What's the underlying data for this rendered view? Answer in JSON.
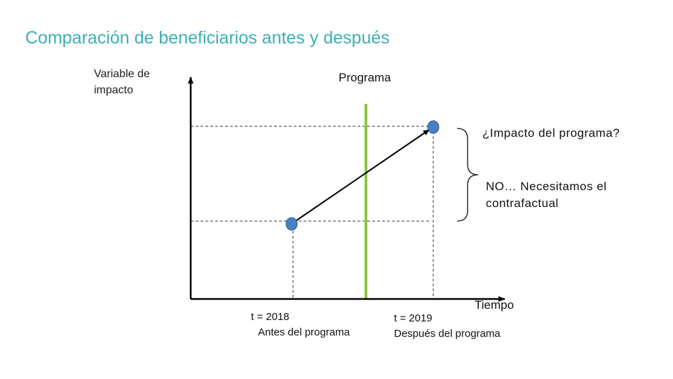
{
  "title": "Comparación de beneficiarios antes y después",
  "y_axis_label": "Variable de impacto",
  "program_label": "Programa",
  "impact_question": "¿Impacto del programa?",
  "counterfactual_note": "NO… Necesitamos el contrafactual",
  "x_axis_label": "Tiempo",
  "before": {
    "time": "t = 2018",
    "label": "Antes del programa"
  },
  "after": {
    "time": "t = 2019",
    "label": "Después del programa"
  },
  "colors": {
    "title": "#3bb0b4",
    "program_line": "#8cc63f",
    "points": "#4a7fc0",
    "axes": "#000000"
  }
}
